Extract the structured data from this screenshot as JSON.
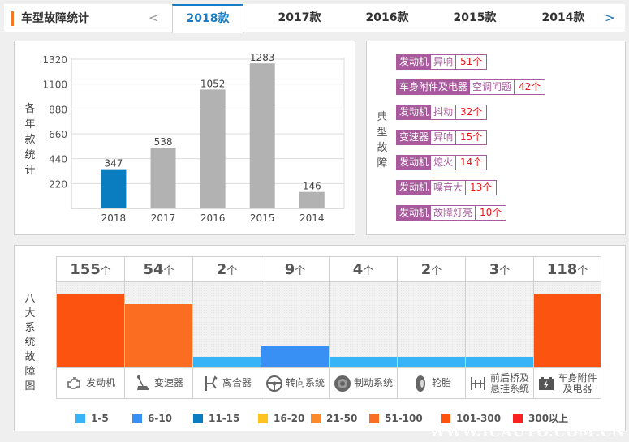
{
  "header": {
    "title": "车型故障统计",
    "prev": "<",
    "next": ">",
    "tabs": [
      {
        "label": "2018款",
        "active": true
      },
      {
        "label": "2017款"
      },
      {
        "label": "2016款"
      },
      {
        "label": "2015款"
      },
      {
        "label": "2014款"
      }
    ]
  },
  "chart_data": {
    "type": "bar",
    "ylabel": "各年款统计",
    "categories": [
      "2018",
      "2017",
      "2016",
      "2015",
      "2014"
    ],
    "values": [
      347,
      538,
      1052,
      1283,
      146
    ],
    "yticks": [
      220,
      440,
      660,
      880,
      1100,
      1320
    ],
    "ylim": [
      0,
      1320
    ],
    "grid": true,
    "colors": {
      "highlight": "#0a7cc0",
      "default": "#b2b2b2"
    },
    "highlight": "2018"
  },
  "typical": {
    "label": "典型故障",
    "items": [
      {
        "system": "发动机",
        "type": "异响",
        "count": "51个"
      },
      {
        "system": "车身附件及电器",
        "type": "空调问题",
        "count": "42个"
      },
      {
        "system": "发动机",
        "type": "抖动",
        "count": "32个"
      },
      {
        "system": "变速器",
        "type": "异响",
        "count": "15个"
      },
      {
        "system": "发动机",
        "type": "熄火",
        "count": "14个"
      },
      {
        "system": "发动机",
        "type": "噪音大",
        "count": "13个"
      },
      {
        "system": "发动机",
        "type": "故障灯亮",
        "count": "10个"
      }
    ]
  },
  "systems": {
    "label": "八大系统故障图",
    "unit": "个",
    "items": [
      {
        "name": "发动机",
        "count": 155,
        "icon": "engine-icon"
      },
      {
        "name": "变速器",
        "count": 54,
        "icon": "gear-shift-icon"
      },
      {
        "name": "离合器",
        "count": 2,
        "icon": "clutch-icon"
      },
      {
        "name": "转向系统",
        "count": 9,
        "icon": "steering-wheel-icon"
      },
      {
        "name": "制动系统",
        "count": 4,
        "icon": "brake-disc-icon"
      },
      {
        "name": "轮胎",
        "count": 2,
        "icon": "tire-icon"
      },
      {
        "name": "前后桥及悬挂系统",
        "count": 3,
        "icon": "axle-icon"
      },
      {
        "name": "车身附件及电器",
        "count": 118,
        "icon": "battery-icon"
      }
    ]
  },
  "legend": [
    {
      "label": "1-5",
      "color": "#36b4f7",
      "min": 1,
      "max": 5
    },
    {
      "label": "6-10",
      "color": "#3890f5",
      "min": 6,
      "max": 10
    },
    {
      "label": "11-15",
      "color": "#0a7cc0",
      "min": 11,
      "max": 15
    },
    {
      "label": "16-20",
      "color": "#fcc322",
      "min": 16,
      "max": 20
    },
    {
      "label": "21-50",
      "color": "#fa8a2a",
      "min": 21,
      "max": 50
    },
    {
      "label": "51-100",
      "color": "#fb6e22",
      "min": 51,
      "max": 100
    },
    {
      "label": "101-300",
      "color": "#fd5310",
      "min": 101,
      "max": 300
    },
    {
      "label": "300以上",
      "color": "#fb1f21",
      "min": 301,
      "max": 99999
    }
  ],
  "watermark": "WWW.ICAUTO.COM.CN"
}
